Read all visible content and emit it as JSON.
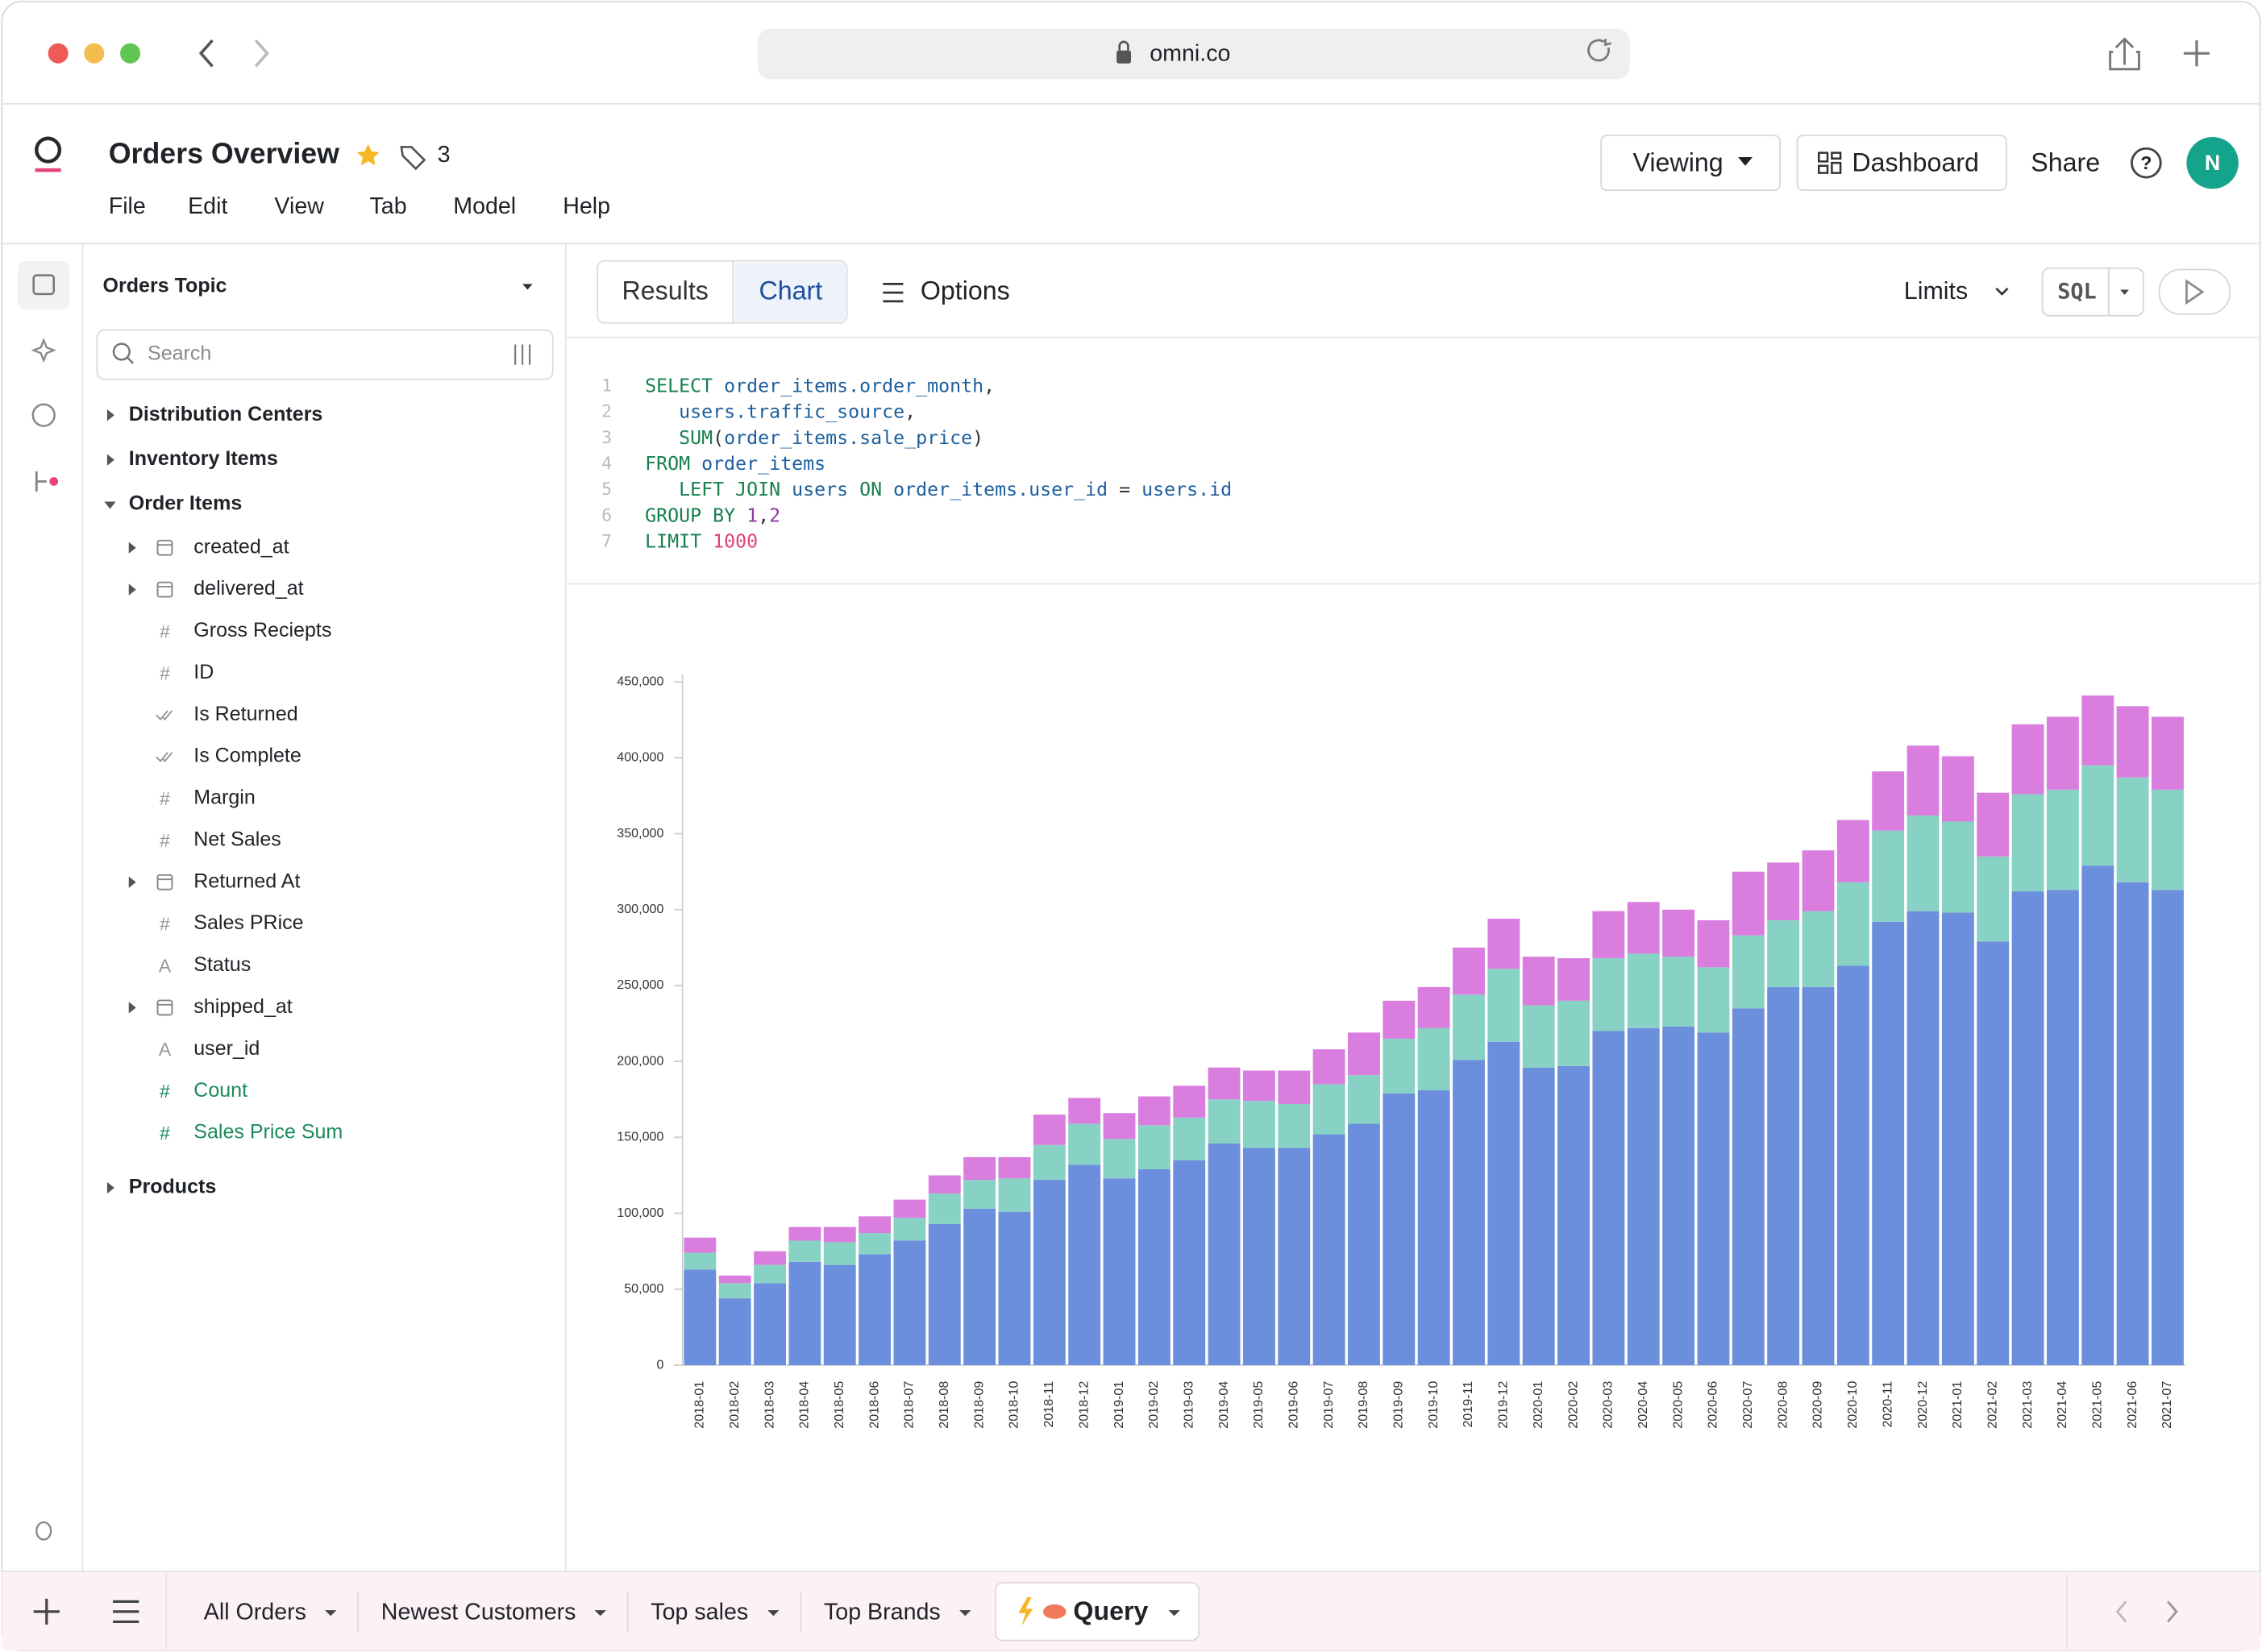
{
  "browser": {
    "url": "omni.co"
  },
  "header": {
    "title": "Orders Overview",
    "tag_count": "3",
    "menu": [
      "File",
      "Edit",
      "View",
      "Tab",
      "Model",
      "Help"
    ],
    "buttons": [
      "Viewing",
      "Dashboard",
      "Share"
    ],
    "avatar": "N"
  },
  "sidebar": {
    "topic": "Orders Topic",
    "search_placeholder": "Search",
    "groups": [
      {
        "label": "Distribution Centers",
        "open": false
      },
      {
        "label": "Inventory Items",
        "open": false
      },
      {
        "label": "Order Items",
        "open": true,
        "fields": [
          {
            "label": "created_at",
            "icon": "calendar",
            "expandable": true
          },
          {
            "label": "delivered_at",
            "icon": "calendar",
            "expandable": true
          },
          {
            "label": "Gross Reciepts",
            "icon": "#",
            "expandable": false
          },
          {
            "label": "ID",
            "icon": "#",
            "expandable": false
          },
          {
            "label": "Is Returned",
            "icon": "check",
            "expandable": false
          },
          {
            "label": "Is Complete",
            "icon": "check",
            "expandable": false
          },
          {
            "label": "Margin",
            "icon": "#",
            "expandable": false
          },
          {
            "label": "Net Sales",
            "icon": "#",
            "expandable": false
          },
          {
            "label": "Returned At",
            "icon": "calendar",
            "expandable": true
          },
          {
            "label": "Sales PRice",
            "icon": "#",
            "expandable": false
          },
          {
            "label": "Status",
            "icon": "A",
            "expandable": false
          },
          {
            "label": "shipped_at",
            "icon": "calendar",
            "expandable": true
          },
          {
            "label": "user_id",
            "icon": "A",
            "expandable": false
          },
          {
            "label": "Count",
            "icon": "#",
            "expandable": false,
            "color": "#1e8a5c"
          },
          {
            "label": "Sales Price Sum",
            "icon": "#",
            "expandable": false,
            "color": "#1e8a5c"
          }
        ]
      },
      {
        "label": "Products",
        "open": false
      }
    ]
  },
  "toolbar": {
    "tabs": [
      "Results",
      "Chart"
    ],
    "active_tab": 1,
    "options": "Options",
    "limits": "Limits",
    "sql": "SQL"
  },
  "sql": {
    "line_numbers": [
      1,
      2,
      3,
      4,
      5,
      6,
      7
    ],
    "lines": [
      [
        {
          "text": "SELECT ",
          "color": "#17804f"
        },
        {
          "text": "order_items.order_month",
          "color": "#1d5f9e"
        },
        {
          "text": ",",
          "color": "#333"
        }
      ],
      [
        {
          "text": "   users.traffic_source",
          "color": "#1d5f9e"
        },
        {
          "text": ",",
          "color": "#333"
        }
      ],
      [
        {
          "text": "   SUM",
          "color": "#17804f"
        },
        {
          "text": "(",
          "color": "#333"
        },
        {
          "text": "order_items.sale_price",
          "color": "#1d5f9e"
        },
        {
          "text": ")",
          "color": "#333"
        }
      ],
      [
        {
          "text": "FROM ",
          "color": "#17804f"
        },
        {
          "text": "order_items",
          "color": "#1d5f9e"
        }
      ],
      [
        {
          "text": "   LEFT JOIN ",
          "color": "#17804f"
        },
        {
          "text": "users ",
          "color": "#1d5f9e"
        },
        {
          "text": "ON ",
          "color": "#17804f"
        },
        {
          "text": "order_items.user_id",
          "color": "#1d5f9e"
        },
        {
          "text": " = ",
          "color": "#333"
        },
        {
          "text": "users.id",
          "color": "#1d5f9e"
        }
      ],
      [
        {
          "text": "GROUP BY ",
          "color": "#17804f"
        },
        {
          "text": "1",
          "color": "#8e3a9e"
        },
        {
          "text": ",",
          "color": "#333"
        },
        {
          "text": "2",
          "color": "#8e3a9e"
        }
      ],
      [
        {
          "text": "LIMIT ",
          "color": "#17804f"
        },
        {
          "text": "1000",
          "color": "#e0407a"
        }
      ]
    ]
  },
  "chart_data": {
    "type": "bar",
    "stacked": true,
    "categories": [
      "2018-01",
      "2018-02",
      "2018-03",
      "2018-04",
      "2018-05",
      "2018-06",
      "2018-07",
      "2018-08",
      "2018-09",
      "2018-10",
      "2018-11",
      "2018-12",
      "2019-01",
      "2019-02",
      "2019-03",
      "2019-04",
      "2019-05",
      "2019-06",
      "2019-07",
      "2019-08",
      "2019-09",
      "2019-10",
      "2019-11",
      "2019-12",
      "2020-01",
      "2020-02",
      "2020-03",
      "2020-04",
      "2020-05",
      "2020-06",
      "2020-07",
      "2020-08",
      "2020-09",
      "2020-10",
      "2020-11",
      "2020-12",
      "2021-01",
      "2021-02",
      "2021-03",
      "2021-04",
      "2021-05",
      "2021-06",
      "2021-07"
    ],
    "series": [
      {
        "color": "#6b8fdc",
        "values": [
          63000,
          44000,
          54000,
          68000,
          66000,
          73000,
          82000,
          93000,
          103000,
          101000,
          122000,
          132000,
          123000,
          129000,
          135000,
          146000,
          143000,
          143000,
          152000,
          159000,
          179000,
          181000,
          201000,
          213000,
          196000,
          197000,
          220000,
          222000,
          223000,
          219000,
          235000,
          249000,
          249000,
          263000,
          292000,
          299000,
          298000,
          279000,
          312000,
          313000,
          329000,
          318000,
          313000
        ]
      },
      {
        "color": "#87d1c5",
        "values": [
          11000,
          10000,
          12000,
          14000,
          15000,
          14000,
          15000,
          20000,
          19000,
          22000,
          23000,
          27000,
          26000,
          29000,
          28000,
          29000,
          31000,
          29000,
          33000,
          32000,
          36000,
          41000,
          43000,
          48000,
          41000,
          43000,
          48000,
          49000,
          46000,
          43000,
          48000,
          44000,
          50000,
          55000,
          60000,
          63000,
          60000,
          56000,
          64000,
          66000,
          66000,
          69000,
          66000
        ]
      },
      {
        "color": "#d97ede",
        "values": [
          10000,
          5000,
          9000,
          9000,
          10000,
          11000,
          12000,
          12000,
          15000,
          14000,
          20000,
          17000,
          17000,
          19000,
          21000,
          21000,
          20000,
          22000,
          23000,
          28000,
          25000,
          27000,
          31000,
          33000,
          32000,
          28000,
          31000,
          34000,
          31000,
          31000,
          42000,
          38000,
          40000,
          41000,
          39000,
          46000,
          43000,
          42000,
          46000,
          48000,
          46000,
          47000,
          48000
        ]
      }
    ],
    "ylim": [
      0,
      450000
    ],
    "yticks": [
      0,
      {
        "value": 50000,
        "label": "50,000"
      },
      {
        "value": 100000,
        "label": "100,000"
      },
      {
        "value": 150000,
        "label": "150,000"
      },
      {
        "value": 200000,
        "label": "200,000"
      },
      {
        "value": 250000,
        "label": "250,000"
      },
      {
        "value": 300000,
        "label": "300,000"
      },
      {
        "value": 350000,
        "label": "350,000"
      },
      {
        "value": 400000,
        "label": "400,000"
      },
      {
        "value": 450000,
        "label": "450,000"
      }
    ],
    "grid": false
  },
  "bottom_tabs": {
    "tabs": [
      "All Orders",
      "Newest Customers",
      "Top sales",
      "Top Brands",
      "Query"
    ],
    "active": 4
  }
}
